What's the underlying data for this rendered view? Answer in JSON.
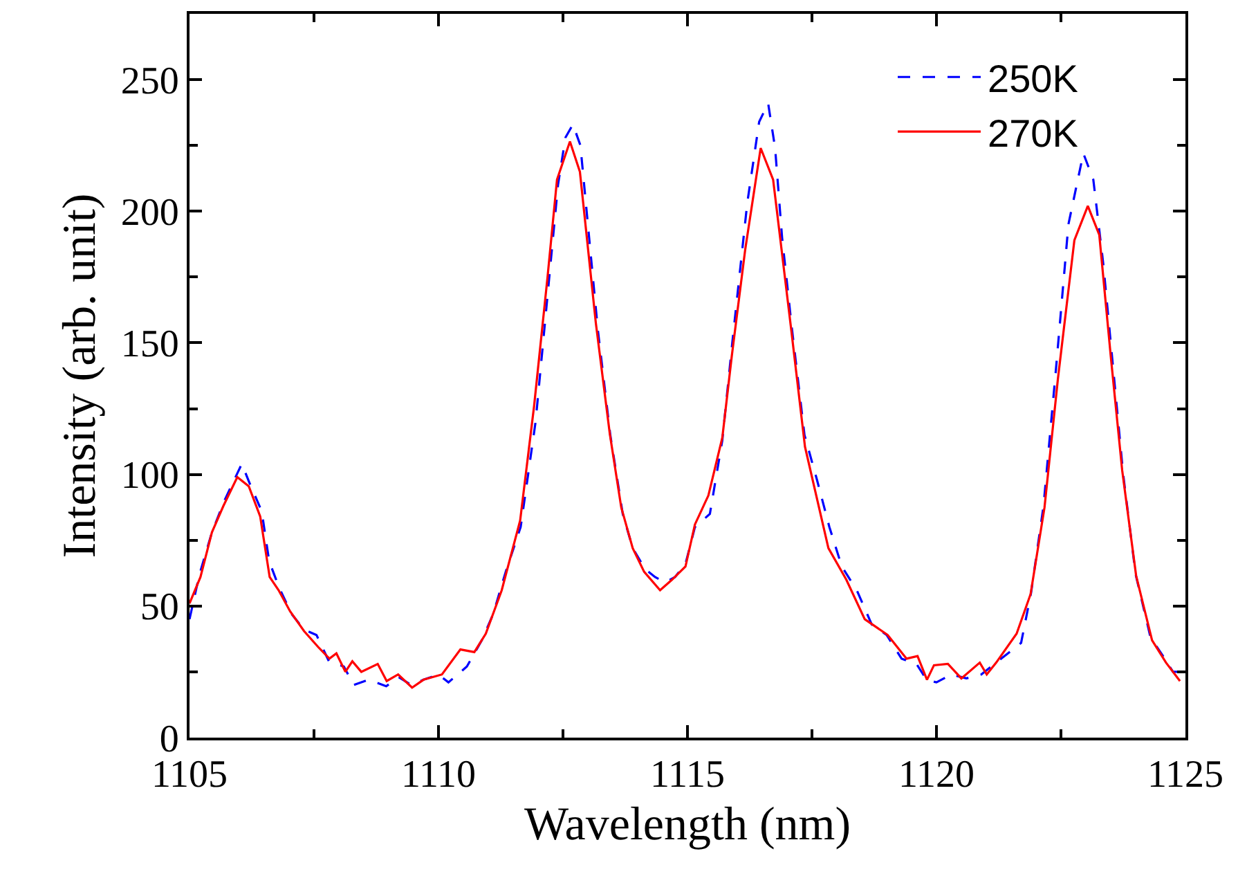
{
  "chart_data": {
    "type": "line",
    "xlabel": "Wavelength (nm)",
    "ylabel": "Intensity (arb. unit)",
    "xlim": [
      1105,
      1125
    ],
    "xticks": [
      1105,
      1110,
      1115,
      1120,
      1125
    ],
    "ylim": [
      0,
      275
    ],
    "yticks": [
      0,
      50,
      100,
      150,
      200,
      250
    ],
    "legend": "top right",
    "series": [
      {
        "name": "250K",
        "color": "#0000ff",
        "line_style": "dashed",
        "x": [
          1105.0,
          1105.2,
          1105.45,
          1105.7,
          1105.95,
          1106.05,
          1106.2,
          1106.45,
          1106.6,
          1106.8,
          1107.05,
          1107.3,
          1107.55,
          1107.8,
          1108.1,
          1108.3,
          1108.6,
          1108.95,
          1109.2,
          1109.45,
          1109.7,
          1110.0,
          1110.2,
          1110.57,
          1110.87,
          1111.1,
          1111.35,
          1111.65,
          1111.95,
          1112.2,
          1112.4,
          1112.55,
          1112.7,
          1112.85,
          1113.0,
          1113.2,
          1113.45,
          1113.7,
          1113.9,
          1114.15,
          1114.35,
          1114.55,
          1114.75,
          1114.96,
          1115.15,
          1115.45,
          1115.7,
          1115.9,
          1116.2,
          1116.44,
          1116.62,
          1116.76,
          1116.9,
          1117.1,
          1117.35,
          1117.6,
          1117.85,
          1118.1,
          1118.4,
          1118.7,
          1119.0,
          1119.3,
          1119.6,
          1119.8,
          1120.0,
          1120.3,
          1120.6,
          1120.9,
          1121.2,
          1121.5,
          1121.7,
          1121.9,
          1122.15,
          1122.4,
          1122.65,
          1122.95,
          1123.15,
          1123.35,
          1123.55,
          1123.75,
          1124.0,
          1124.3,
          1124.55,
          1124.75,
          1125.0
        ],
        "values": [
          45,
          62,
          78,
          90,
          100,
          104,
          97,
          86,
          67,
          57,
          47,
          41,
          39,
          29,
          27,
          20,
          22,
          19.5,
          23,
          20,
          22,
          24,
          21,
          27,
          37,
          47,
          63,
          80,
          120,
          170,
          210,
          228,
          233,
          225,
          195,
          155,
          115,
          85,
          72,
          64,
          61,
          59,
          61,
          66,
          80,
          85,
          113,
          150,
          203,
          234,
          241,
          224,
          190,
          155,
          115,
          98,
          80,
          65,
          56,
          43,
          39,
          30,
          28,
          22,
          21,
          24,
          22.5,
          24,
          28.5,
          33,
          36,
          55,
          88,
          140,
          195,
          222,
          212,
          180,
          140,
          100,
          62,
          38,
          31,
          25,
          25
        ]
      },
      {
        "name": "270K",
        "color": "#ff0000",
        "line_style": "solid",
        "x": [
          1105.0,
          1105.22,
          1105.45,
          1105.68,
          1105.96,
          1106.19,
          1106.42,
          1106.61,
          1106.79,
          1107.02,
          1107.3,
          1107.58,
          1107.81,
          1107.95,
          1108.13,
          1108.27,
          1108.45,
          1108.78,
          1108.96,
          1109.19,
          1109.47,
          1109.7,
          1110.07,
          1110.44,
          1110.72,
          1110.95,
          1111.27,
          1111.64,
          1111.92,
          1112.19,
          1112.38,
          1112.64,
          1112.84,
          1113.16,
          1113.44,
          1113.67,
          1113.9,
          1114.13,
          1114.45,
          1114.69,
          1114.96,
          1115.15,
          1115.42,
          1115.7,
          1115.89,
          1116.16,
          1116.47,
          1116.72,
          1117.09,
          1117.36,
          1117.83,
          1118.19,
          1118.56,
          1119.02,
          1119.4,
          1119.62,
          1119.81,
          1119.95,
          1120.23,
          1120.5,
          1120.87,
          1121.01,
          1121.2,
          1121.61,
          1121.89,
          1122.17,
          1122.44,
          1122.77,
          1123.04,
          1123.27,
          1123.5,
          1123.73,
          1124.01,
          1124.33,
          1124.61,
          1124.89
        ],
        "values": [
          51,
          61,
          78,
          88,
          99,
          95.5,
          84,
          61,
          56,
          48,
          40.5,
          34.5,
          30,
          32,
          25,
          29,
          25,
          28,
          21.5,
          24,
          19,
          22,
          24,
          33.5,
          32.5,
          39.5,
          56,
          82.5,
          126,
          175,
          212,
          226.5,
          215,
          157.5,
          115.5,
          87.5,
          72,
          63,
          56,
          60,
          65,
          81,
          92,
          114,
          145,
          185.5,
          224,
          212,
          154,
          110.5,
          72,
          60,
          45,
          39,
          30,
          31,
          22,
          27.5,
          28,
          22.5,
          28.5,
          24,
          28.5,
          39.5,
          54.5,
          87.5,
          136.5,
          189,
          202,
          191,
          145,
          101.5,
          61.5,
          37,
          28.5,
          21.5
        ]
      }
    ]
  }
}
